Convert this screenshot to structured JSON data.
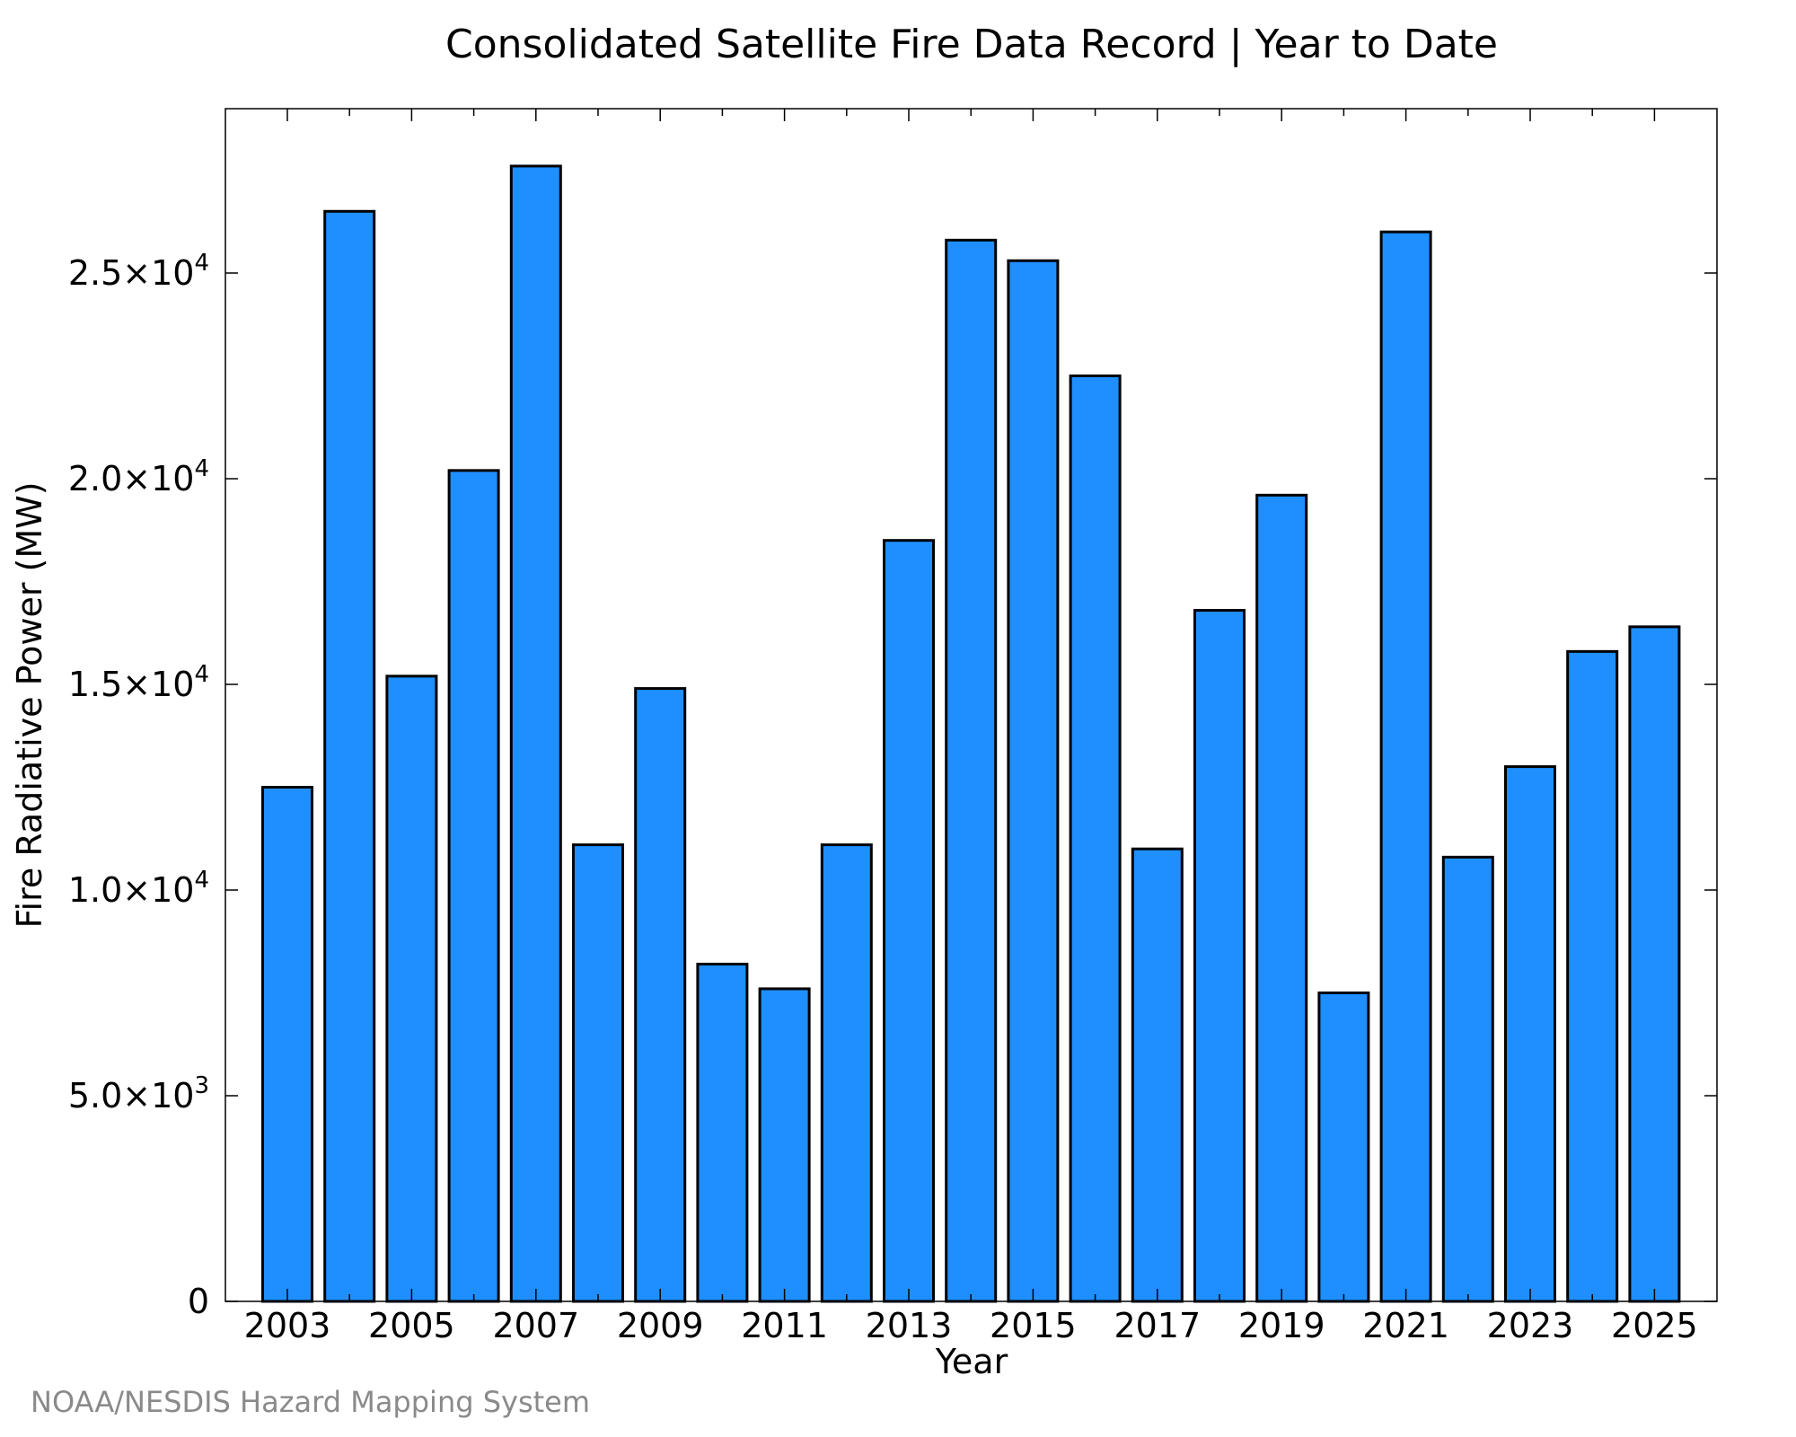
{
  "chart_data": {
    "type": "bar",
    "title": "Consolidated Satellite Fire Data Record | Year to Date",
    "xlabel": "Year",
    "ylabel": "Fire Radiative Power (MW)",
    "ylim": [
      0,
      29000
    ],
    "grid": false,
    "bar_color": "#1f8fff",
    "bar_edge_color": "#000000",
    "categories": [
      2003,
      2004,
      2005,
      2006,
      2007,
      2008,
      2009,
      2010,
      2011,
      2012,
      2013,
      2014,
      2015,
      2016,
      2017,
      2018,
      2019,
      2020,
      2021,
      2022,
      2023,
      2024,
      2025
    ],
    "values": [
      12500,
      26500,
      15200,
      20200,
      27600,
      11100,
      14900,
      8200,
      7600,
      11100,
      18500,
      25800,
      25300,
      22500,
      11000,
      16800,
      19600,
      7500,
      26000,
      10800,
      13000,
      15800,
      16400
    ],
    "x_tick_labels": [
      "2003",
      "2005",
      "2007",
      "2009",
      "2011",
      "2013",
      "2015",
      "2017",
      "2019",
      "2021",
      "2023",
      "2025"
    ],
    "y_ticks": [
      {
        "value": 0,
        "mantissa": "0",
        "exponent": ""
      },
      {
        "value": 5000,
        "mantissa": "5.0×10",
        "exponent": "3"
      },
      {
        "value": 10000,
        "mantissa": "1.0×10",
        "exponent": "4"
      },
      {
        "value": 15000,
        "mantissa": "1.5×10",
        "exponent": "4"
      },
      {
        "value": 20000,
        "mantissa": "2.0×10",
        "exponent": "4"
      },
      {
        "value": 25000,
        "mantissa": "2.5×10",
        "exponent": "4"
      }
    ]
  },
  "credit": "NOAA/NESDIS Hazard Mapping System"
}
